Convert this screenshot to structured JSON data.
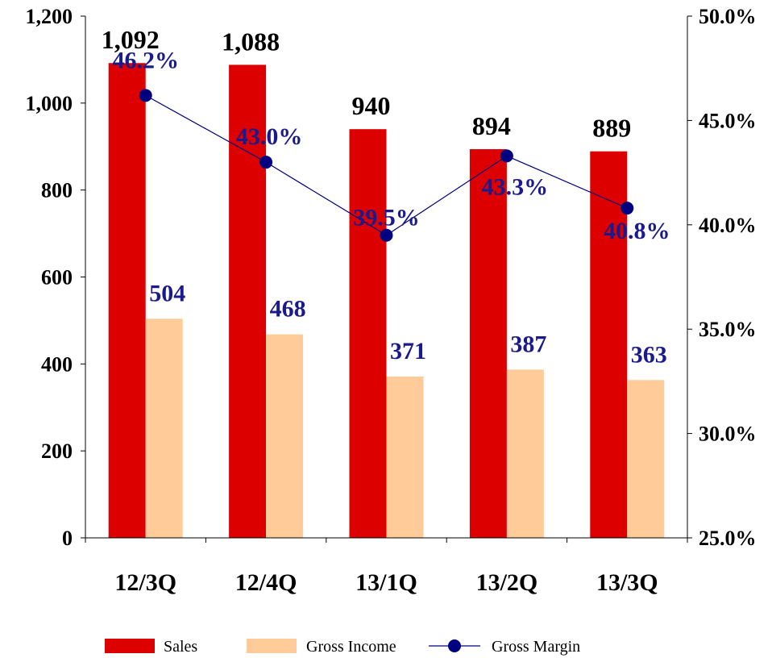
{
  "chart_data": {
    "type": "bar",
    "categories": [
      "12/3Q",
      "12/4Q",
      "13/1Q",
      "13/2Q",
      "13/3Q"
    ],
    "series": [
      {
        "name": "Sales",
        "kind": "bar",
        "axis": "left",
        "color": "#dd0000",
        "values": [
          1092,
          1088,
          940,
          894,
          889
        ],
        "labels": [
          "1,092",
          "1,088",
          "940",
          "894",
          "889"
        ]
      },
      {
        "name": "Gross Income",
        "kind": "bar",
        "axis": "left",
        "color": "#ffcc99",
        "values": [
          504,
          468,
          371,
          387,
          363
        ],
        "labels": [
          "504",
          "468",
          "371",
          "387",
          "363"
        ]
      },
      {
        "name": "Gross Margin",
        "kind": "line",
        "axis": "right",
        "color": "#000080",
        "values": [
          46.2,
          43.0,
          39.5,
          43.3,
          40.8
        ],
        "labels": [
          "46.2%",
          "43.0%",
          "39.5%",
          "43.3%",
          "40.8%"
        ]
      }
    ],
    "y_left": {
      "ylim": [
        0,
        1200
      ],
      "ticks": [
        0,
        200,
        400,
        600,
        800,
        1000,
        1200
      ],
      "tick_labels": [
        "0",
        "200",
        "400",
        "600",
        "800",
        "1,000",
        "1,200"
      ]
    },
    "y_right": {
      "ylim": [
        25.0,
        50.0
      ],
      "ticks": [
        25,
        30,
        35,
        40,
        45,
        50
      ],
      "tick_labels": [
        "25.0%",
        "30.0%",
        "35.0%",
        "40.0%",
        "45.0%",
        "50.0%"
      ]
    },
    "legend": {
      "placement": "bottom",
      "entries": [
        "Sales",
        "Gross Income",
        "Gross Margin"
      ]
    },
    "grid": false
  }
}
